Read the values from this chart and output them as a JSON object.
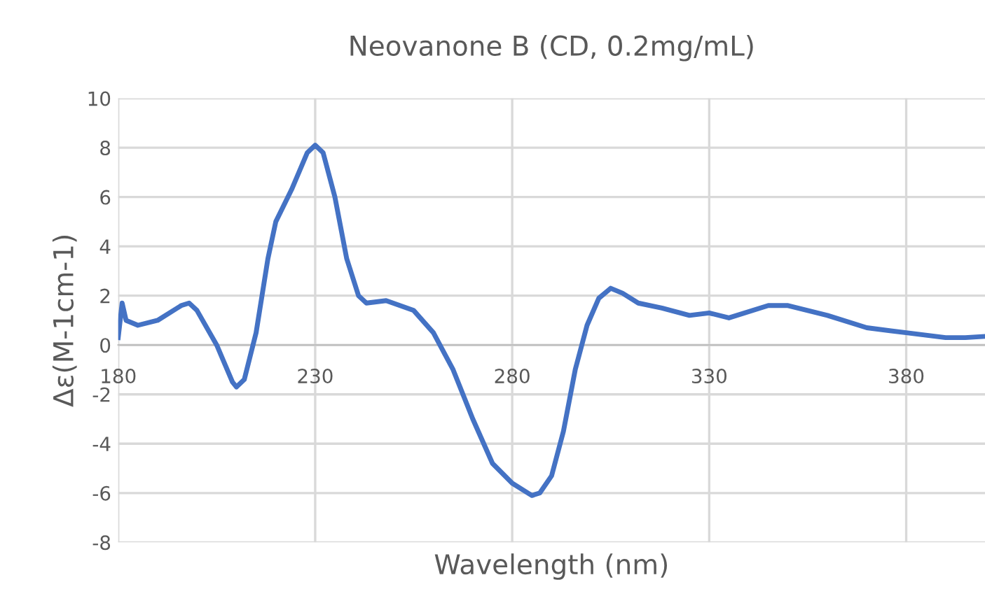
{
  "chart_data": {
    "type": "line",
    "title": "Neovanone B (CD, 0.2mg/mL)",
    "xlabel": "Wavelength (nm)",
    "ylabel": "Δε(M-1cm-1)",
    "xlim": [
      180,
      400
    ],
    "xticks": [
      180,
      230,
      280,
      330,
      380
    ],
    "ylim": [
      -8,
      10
    ],
    "yticks": [
      -8,
      -6,
      -4,
      -2,
      0,
      2,
      4,
      6,
      8,
      10
    ],
    "grid": true,
    "legend": false,
    "marker": "none",
    "line_style": "solid",
    "series": [
      {
        "color": "#4472c4",
        "x": [
          180,
          181,
          182,
          185,
          190,
          196,
          198,
          200,
          205,
          209,
          210,
          212,
          215,
          218,
          220,
          224,
          228,
          230,
          232,
          235,
          238,
          241,
          243,
          248,
          255,
          260,
          265,
          270,
          275,
          280,
          285,
          287,
          290,
          293,
          296,
          299,
          302,
          305,
          308,
          312,
          318,
          325,
          330,
          335,
          345,
          350,
          360,
          370,
          380,
          390,
          395,
          400
        ],
        "values": [
          0.3,
          1.7,
          1.0,
          0.8,
          1.0,
          1.6,
          1.7,
          1.4,
          0.0,
          -1.5,
          -1.7,
          -1.4,
          0.5,
          3.5,
          5.0,
          6.3,
          7.8,
          8.1,
          7.8,
          6.0,
          3.5,
          2.0,
          1.7,
          1.8,
          1.4,
          0.5,
          -1.0,
          -3.0,
          -4.8,
          -5.6,
          -6.1,
          -6.0,
          -5.3,
          -3.5,
          -1.0,
          0.8,
          1.9,
          2.3,
          2.1,
          1.7,
          1.5,
          1.2,
          1.3,
          1.1,
          1.6,
          1.6,
          1.2,
          0.7,
          0.5,
          0.3,
          0.3,
          0.35
        ]
      }
    ]
  }
}
